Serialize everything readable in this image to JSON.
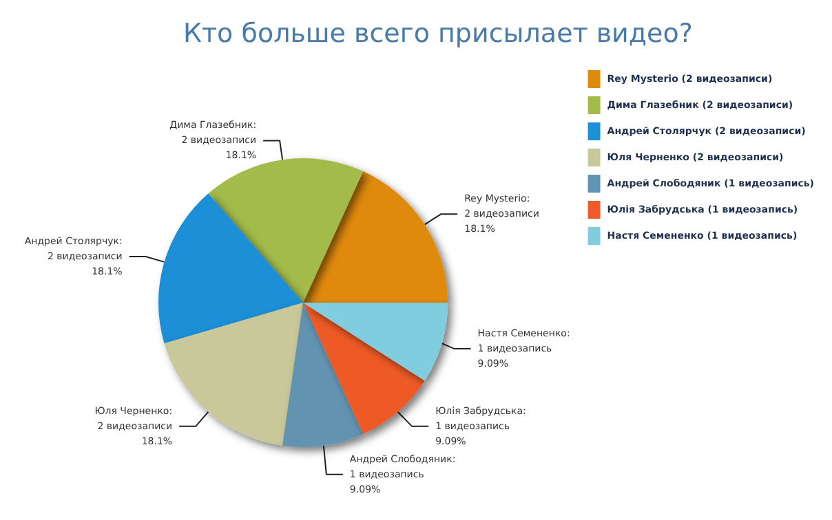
{
  "chart_data": {
    "type": "pie",
    "title": "Кто больше всего присылает видео?",
    "categories": [
      "Rey Mysterio (2 видеозаписи)",
      "Дима Глазебник (2 видеозаписи)",
      "Андрей Столярчук (2 видеозаписи)",
      "Юля Черненко (2 видеозаписи)",
      "Андрей Слободяник (1 видеозапись)",
      "Юлія Забрудська (1 видеозапись)",
      "Настя Семененко (1 видеозапись)"
    ],
    "values": [
      2,
      2,
      2,
      2,
      1,
      1,
      1
    ],
    "colors": [
      "#e08a0c",
      "#a3bb4a",
      "#1c8fd6",
      "#c8c89a",
      "#6293b0",
      "#ee5a28",
      "#80cde0"
    ],
    "value_labels": [
      "Rey Mysterio:\n2 видеозаписи\n18.1%",
      "Дима Глазебник:\n2 видеозаписи\n18.1%",
      "Андрей Столярчук:\n2 видеозаписи\n18.1%",
      "Юля Черненко:\n2 видеозаписи\n18.1%",
      "Андрей Слободяник:\n1 видеозапись\n9.09%",
      "Юлія Забрудська:\n1 видеозапись\n9.09%",
      "Настя Семененко:\n1 видеозапись\n9.09%"
    ],
    "legend": "top right"
  }
}
